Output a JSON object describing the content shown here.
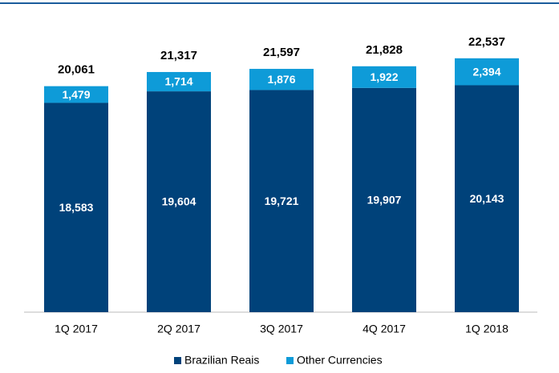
{
  "chart_data": {
    "type": "stacked_bar",
    "categories": [
      "1Q 2017",
      "2Q 2017",
      "3Q 2017",
      "4Q 2017",
      "1Q 2018"
    ],
    "series": [
      {
        "name": "Brazilian Reais",
        "color": "#00427a",
        "values": [
          18583,
          19604,
          19721,
          19907,
          20143
        ],
        "value_labels": [
          "18,583",
          "19,604",
          "19,721",
          "19,907",
          "20,143"
        ]
      },
      {
        "name": "Other Currencies",
        "color": "#0e9bd8",
        "values": [
          1479,
          1714,
          1876,
          1922,
          2394
        ],
        "value_labels": [
          "1,479",
          "1,714",
          "1,876",
          "1,922",
          "2,394"
        ]
      }
    ],
    "totals": [
      20061,
      21317,
      21597,
      21828,
      22537
    ],
    "total_labels": [
      "20,061",
      "21,317",
      "21,597",
      "21,828",
      "22,537"
    ],
    "ylim": [
      0,
      27000
    ],
    "legend": "bottom"
  }
}
